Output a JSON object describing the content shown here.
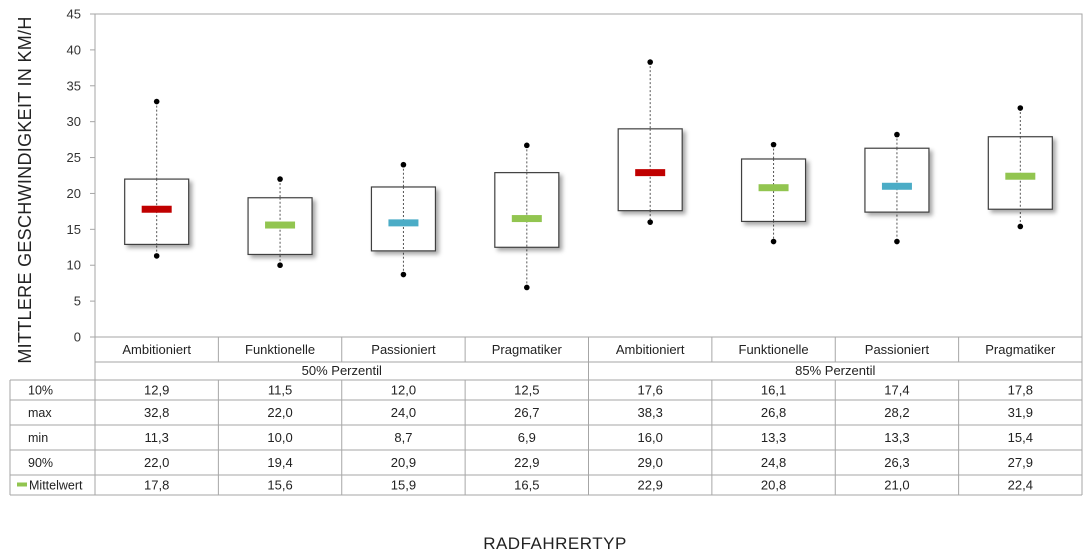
{
  "chart_data": {
    "type": "box",
    "ylabel": "MITTLERE GESCHWINDIGKEIT IN KM/H",
    "xlabel": "RADFAHRERTYP",
    "ylim": [
      0,
      45
    ],
    "yticks": [
      0,
      5,
      10,
      15,
      20,
      25,
      30,
      35,
      40,
      45
    ],
    "grid": false,
    "groups": [
      {
        "label": "50% Perzentil",
        "categories": [
          "Ambitioniert",
          "Funktionelle",
          "Passioniert",
          "Pragmatiker"
        ]
      },
      {
        "label": "85% Perzentil",
        "categories": [
          "Ambitioniert",
          "Funktionelle",
          "Passioniert",
          "Pragmatiker"
        ]
      }
    ],
    "series": [
      {
        "group": "50% Perzentil",
        "category": "Ambitioniert",
        "p10": 12.9,
        "max": 32.8,
        "min": 11.3,
        "p90": 22.0,
        "mean": 17.8,
        "color": "#c00000"
      },
      {
        "group": "50% Perzentil",
        "category": "Funktionelle",
        "p10": 11.5,
        "max": 22.0,
        "min": 10.0,
        "p90": 19.4,
        "mean": 15.6,
        "color": "#92c550"
      },
      {
        "group": "50% Perzentil",
        "category": "Passioniert",
        "p10": 12.0,
        "max": 24.0,
        "min": 8.7,
        "p90": 20.9,
        "mean": 15.9,
        "color": "#4bacc6"
      },
      {
        "group": "50% Perzentil",
        "category": "Pragmatiker",
        "p10": 12.5,
        "max": 26.7,
        "min": 6.9,
        "p90": 22.9,
        "mean": 16.5,
        "color": "#92c550"
      },
      {
        "group": "85% Perzentil",
        "category": "Ambitioniert",
        "p10": 17.6,
        "max": 38.3,
        "min": 16.0,
        "p90": 29.0,
        "mean": 22.9,
        "color": "#c00000"
      },
      {
        "group": "85% Perzentil",
        "category": "Funktionelle",
        "p10": 16.1,
        "max": 26.8,
        "min": 13.3,
        "p90": 24.8,
        "mean": 20.8,
        "color": "#92c550"
      },
      {
        "group": "85% Perzentil",
        "category": "Passioniert",
        "p10": 17.4,
        "max": 28.2,
        "min": 13.3,
        "p90": 26.3,
        "mean": 21.0,
        "color": "#4bacc6"
      },
      {
        "group": "85% Perzentil",
        "category": "Pragmatiker",
        "p10": 17.8,
        "max": 31.9,
        "min": 15.4,
        "p90": 27.9,
        "mean": 22.4,
        "color": "#92c550"
      }
    ],
    "table": {
      "rows": [
        {
          "label": "10%",
          "key": "p10",
          "values": [
            "12,9",
            "11,5",
            "12,0",
            "12,5",
            "17,6",
            "16,1",
            "17,4",
            "17,8"
          ]
        },
        {
          "label": "max",
          "key": "max",
          "values": [
            "32,8",
            "22,0",
            "24,0",
            "26,7",
            "38,3",
            "26,8",
            "28,2",
            "31,9"
          ]
        },
        {
          "label": "min",
          "key": "min",
          "values": [
            "11,3",
            "10,0",
            "8,7",
            "6,9",
            "16,0",
            "13,3",
            "13,3",
            "15,4"
          ]
        },
        {
          "label": "90%",
          "key": "p90",
          "values": [
            "22,0",
            "19,4",
            "20,9",
            "22,9",
            "29,0",
            "24,8",
            "26,3",
            "27,9"
          ]
        },
        {
          "label": "Mittelwert",
          "key": "mean",
          "legend_color": "#92c550",
          "values": [
            "17,8",
            "15,6",
            "15,9",
            "16,5",
            "22,9",
            "20,8",
            "21,0",
            "22,4"
          ]
        }
      ]
    }
  }
}
